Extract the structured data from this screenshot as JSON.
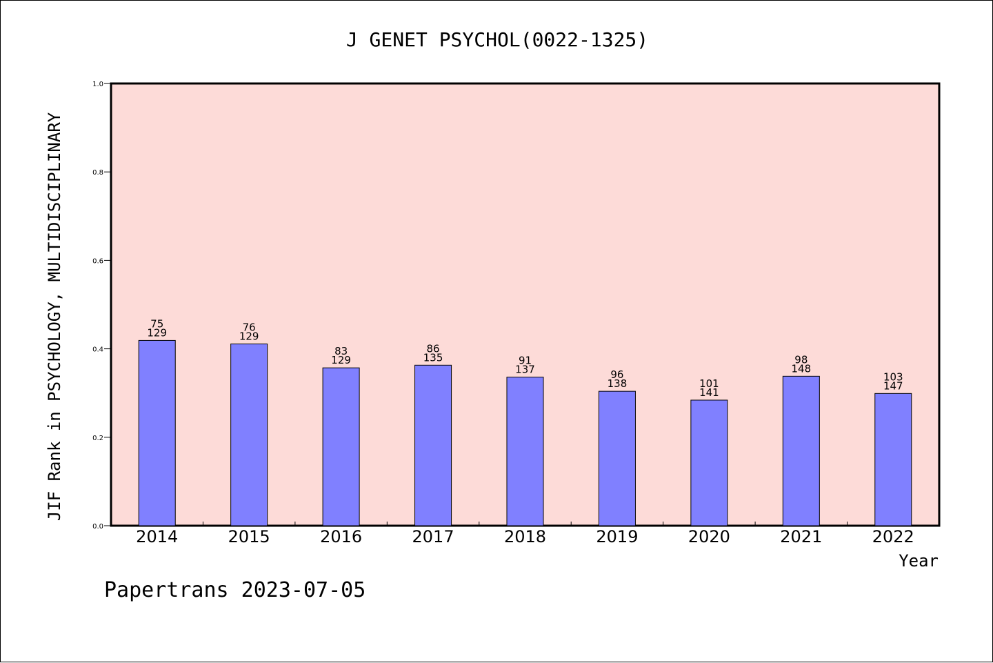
{
  "colors": {
    "plot_background": "#fddbd8",
    "bar_fill": "#8080ff",
    "bar_stroke": "#000000",
    "axis": "#000000"
  },
  "footer": {
    "text": "Papertrans 2023-07-05"
  },
  "chart_data": {
    "type": "bar",
    "title": "J GENET PSYCHOL(0022-1325)",
    "xlabel": "Year",
    "ylabel": "JIF Rank in PSYCHOLOGY, MULTIDISCIPLINARY",
    "ylim": [
      0,
      1.0
    ],
    "yticks": [
      "0.0",
      "0.2",
      "0.4",
      "0.6",
      "0.8",
      "1.0"
    ],
    "grid": false,
    "categories": [
      "2014",
      "2015",
      "2016",
      "2017",
      "2018",
      "2019",
      "2020",
      "2021",
      "2022"
    ],
    "values": [
      0.419,
      0.411,
      0.357,
      0.363,
      0.336,
      0.304,
      0.284,
      0.338,
      0.299
    ],
    "rank": [
      "75",
      "76",
      "83",
      "86",
      "91",
      "96",
      "101",
      "98",
      "103"
    ],
    "total": [
      "129",
      "129",
      "129",
      "135",
      "137",
      "138",
      "141",
      "148",
      "147"
    ]
  }
}
